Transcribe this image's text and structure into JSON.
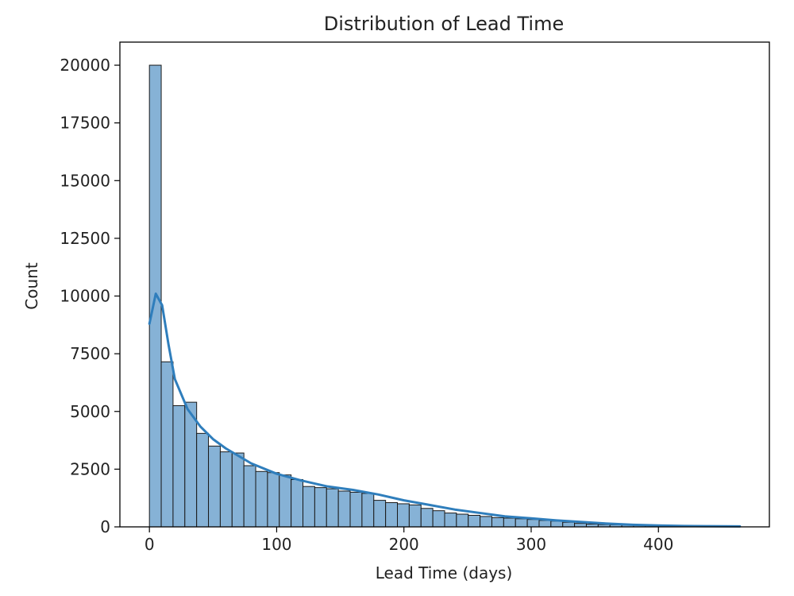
{
  "chart_data": {
    "type": "bar",
    "title": "Distribution of Lead Time",
    "xlabel": "Lead Time (days)",
    "ylabel": "Count",
    "xlim": [
      -23.2,
      487.2
    ],
    "ylim": [
      0,
      21000
    ],
    "xticks": [
      0,
      100,
      200,
      300,
      400
    ],
    "yticks": [
      0,
      2500,
      5000,
      7500,
      10000,
      12500,
      15000,
      17500,
      20000
    ],
    "bin_start": 0,
    "bin_width": 9.28,
    "values": [
      20000,
      7150,
      5250,
      5400,
      4050,
      3500,
      3250,
      3200,
      2650,
      2400,
      2350,
      2250,
      2050,
      1750,
      1700,
      1650,
      1550,
      1500,
      1450,
      1150,
      1050,
      1000,
      950,
      800,
      700,
      600,
      550,
      500,
      450,
      400,
      380,
      350,
      320,
      280,
      250,
      200,
      150,
      120,
      100,
      90,
      80,
      70,
      60,
      50,
      40,
      30,
      20,
      15,
      10,
      10
    ],
    "kde": {
      "name": "KDE",
      "x": [
        0,
        5,
        10,
        15,
        20,
        30,
        40,
        50,
        60,
        80,
        100,
        120,
        140,
        160,
        180,
        200,
        220,
        240,
        260,
        280,
        300,
        320,
        340,
        360,
        380,
        400,
        420,
        440,
        464
      ],
      "y": [
        8800,
        10100,
        9600,
        7900,
        6400,
        5100,
        4350,
        3800,
        3400,
        2750,
        2300,
        2000,
        1750,
        1600,
        1400,
        1150,
        950,
        750,
        600,
        450,
        370,
        280,
        210,
        140,
        90,
        60,
        40,
        30,
        20
      ]
    },
    "bar_color": "#86b2d6",
    "bar_edge_color": "#1a1a1a",
    "line_color": "#2f7ebc",
    "grid": false,
    "legend": "none"
  }
}
